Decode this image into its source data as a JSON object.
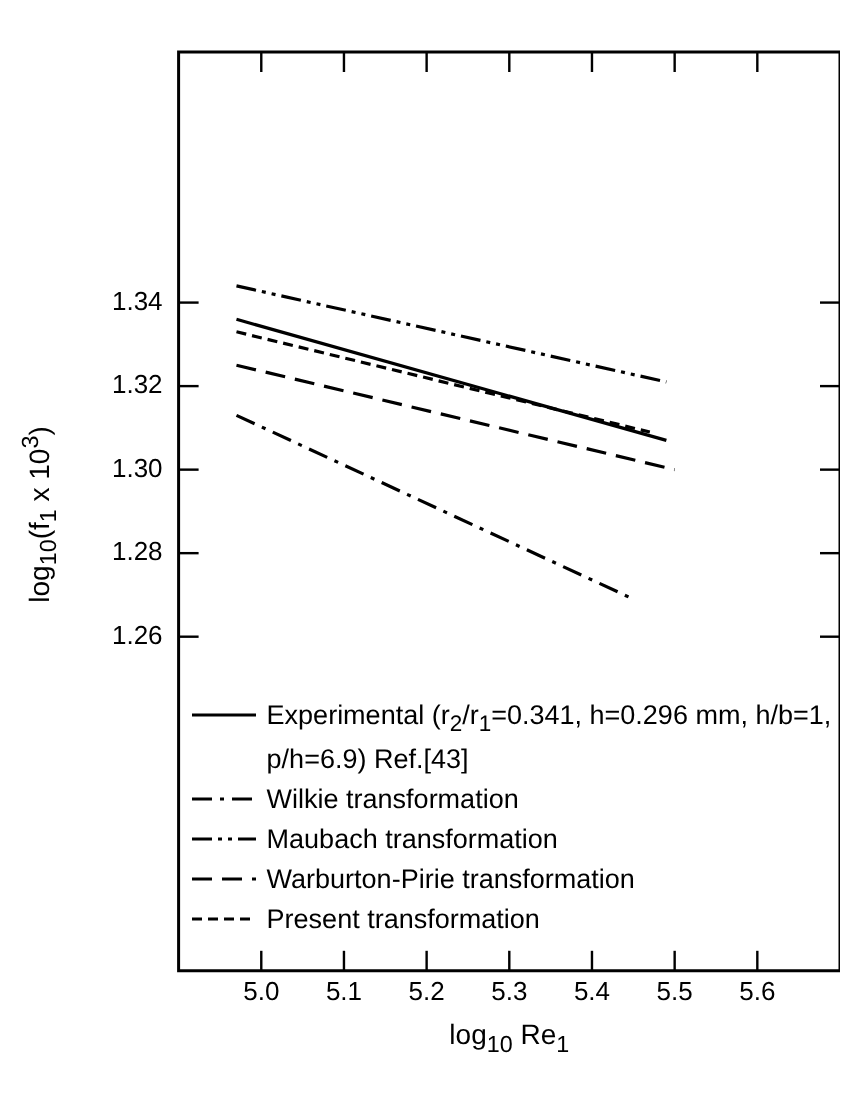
{
  "chart_data": {
    "type": "line",
    "xlabel": "log$_{10}$ Re$_{1}$",
    "ylabel": "log$_{10}$(f$_{1}$ x 10$^{3}$)",
    "xlim": [
      4.9,
      5.7
    ],
    "xticks": [
      {
        "value": 5.0,
        "label": "5.0"
      },
      5.1,
      5.2,
      5.3,
      5.4,
      5.5,
      5.6
    ],
    "ylim": [
      1.18,
      1.4
    ],
    "yticks": [
      1.26,
      1.28,
      {
        "value": 1.3,
        "label": "1.30"
      },
      1.32,
      1.34
    ],
    "grid": false,
    "legend": "bottom left",
    "marker": "none",
    "series": [
      {
        "name": "Experimental (r$_{2}$/r$_{1}$=0.341, h=0.296 mm, h/b=1, p/h=6.9) Ref.[43]",
        "color": "#000000",
        "line_style": "solid",
        "x": [
          4.97,
          5.49
        ],
        "values": [
          1.336,
          1.307
        ]
      },
      {
        "name": "Wilkie transformation",
        "color": "#000000",
        "line_style": "dashdot",
        "x": [
          4.97,
          5.45
        ],
        "values": [
          1.313,
          1.269
        ]
      },
      {
        "name": "Maubach transformation",
        "color": "#000000",
        "line_style": "dashdotdot",
        "x": [
          4.97,
          5.49
        ],
        "values": [
          1.344,
          1.321
        ]
      },
      {
        "name": "Warburton-Pirie transformation",
        "color": "#000000",
        "line_style": "longdash",
        "x": [
          4.97,
          5.5
        ],
        "values": [
          1.325,
          1.3
        ]
      },
      {
        "name": "Present transformation",
        "color": "#000000",
        "line_style": "dashed",
        "x": [
          4.97,
          5.47
        ],
        "values": [
          1.333,
          1.309
        ]
      }
    ]
  }
}
